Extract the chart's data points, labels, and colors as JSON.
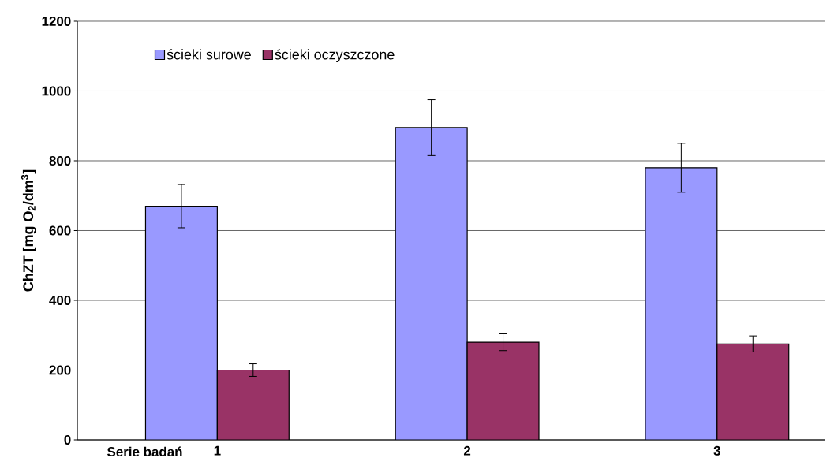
{
  "chart_data": {
    "type": "bar",
    "xlabel": "Serie badań",
    "ylabel": "ChZT [mg O$_{2}$/dm$^{3}$]",
    "categories": [
      "1",
      "2",
      "3"
    ],
    "series": [
      {
        "name": "ścieki surowe",
        "color": "#9999ff",
        "values": [
          670,
          895,
          780
        ],
        "errors": [
          62,
          80,
          70
        ]
      },
      {
        "name": "ścieki oczyszczone",
        "color": "#993366",
        "values": [
          200,
          280,
          275
        ],
        "errors": [
          18,
          24,
          23
        ]
      }
    ],
    "ylim": [
      0,
      1200
    ],
    "yticks": [
      0,
      200,
      400,
      600,
      800,
      1000,
      1200
    ],
    "grid": "y",
    "legend": "top left"
  }
}
